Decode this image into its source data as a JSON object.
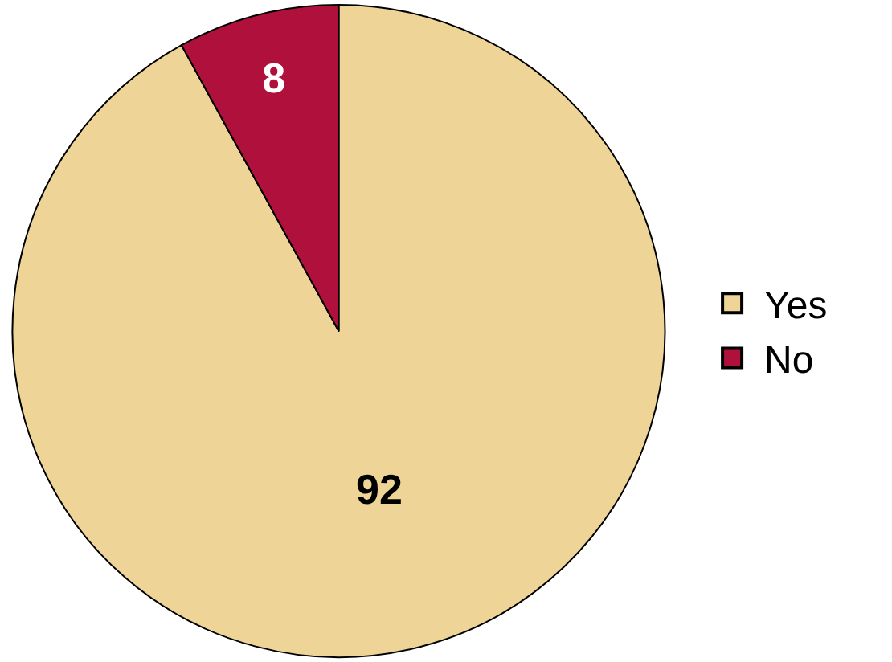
{
  "chart_data": {
    "type": "pie",
    "categories": [
      "Yes",
      "No"
    ],
    "values": [
      92,
      8
    ],
    "colors": [
      "#eed597",
      "#b0103c"
    ],
    "data_labels": true,
    "legend": "right"
  }
}
